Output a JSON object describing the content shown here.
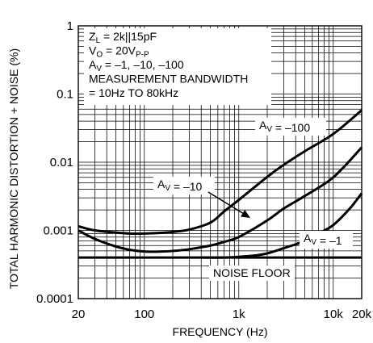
{
  "chart_data": {
    "type": "line",
    "title": "",
    "xlabel": "FREQUENCY (Hz)",
    "ylabel": "TOTAL HARMONIC DISTORTION + NOISE (%)",
    "x_scale": "log",
    "y_scale": "log",
    "xlim": [
      20,
      20000
    ],
    "ylim": [
      0.0001,
      1
    ],
    "grid": true,
    "x_ticks": [
      {
        "value": 20,
        "label": "20"
      },
      {
        "value": 100,
        "label": "100"
      },
      {
        "value": 1000,
        "label": "1k"
      },
      {
        "value": 10000,
        "label": "10k"
      },
      {
        "value": 20000,
        "label": "20k"
      }
    ],
    "y_ticks": [
      {
        "value": 1,
        "label": "1"
      },
      {
        "value": 0.1,
        "label": "0.1"
      },
      {
        "value": 0.01,
        "label": "0.01"
      },
      {
        "value": 0.001,
        "label": "0.001"
      },
      {
        "value": 0.0001,
        "label": "0.0001"
      }
    ],
    "conditions": {
      "lines": [
        {
          "parts": [
            {
              "t": "Z"
            },
            {
              "t": "L",
              "sub": true
            },
            {
              "t": " = 2k||15pF"
            }
          ]
        },
        {
          "parts": [
            {
              "t": "V"
            },
            {
              "t": "O",
              "sub": true
            },
            {
              "t": " = 20V"
            },
            {
              "t": "P-P",
              "sub": true
            }
          ]
        },
        {
          "parts": [
            {
              "t": "A"
            },
            {
              "t": "V",
              "sub": true
            },
            {
              "t": " = –1, –10, –100"
            }
          ]
        },
        {
          "parts": [
            {
              "t": "MEASUREMENT BANDWIDTH"
            }
          ]
        },
        {
          "parts": [
            {
              "t": "= 10Hz TO 80kHz"
            }
          ]
        }
      ]
    },
    "series": [
      {
        "label": {
          "parts": [
            {
              "t": "A"
            },
            {
              "t": "V",
              "sub": true
            },
            {
              "t": " = –100"
            }
          ]
        },
        "x": [
          20,
          30,
          50,
          70,
          100,
          150,
          200,
          300,
          500,
          700,
          1000,
          2000,
          3000,
          5000,
          10000,
          20000
        ],
        "y": [
          0.00115,
          0.001,
          0.00093,
          0.0009,
          0.0009,
          0.00092,
          0.00095,
          0.00103,
          0.0013,
          0.0019,
          0.0028,
          0.0061,
          0.0092,
          0.0145,
          0.026,
          0.058
        ]
      },
      {
        "label": {
          "parts": [
            {
              "t": "A"
            },
            {
              "t": "V",
              "sub": true
            },
            {
              "t": " = –10"
            }
          ]
        },
        "x": [
          20,
          30,
          50,
          70,
          100,
          150,
          200,
          300,
          500,
          700,
          1000,
          2000,
          3000,
          5000,
          10000,
          20000
        ],
        "y": [
          0.001,
          0.00075,
          0.00058,
          0.00052,
          0.00049,
          0.00049,
          0.0005,
          0.00053,
          0.0006,
          0.00068,
          0.0008,
          0.0014,
          0.0021,
          0.0032,
          0.006,
          0.0165
        ]
      },
      {
        "label": {
          "parts": [
            {
              "t": "A"
            },
            {
              "t": "V",
              "sub": true
            },
            {
              "t": " = –1"
            }
          ]
        },
        "x": [
          400,
          700,
          1000,
          1500,
          2000,
          3000,
          5000,
          7000,
          10000,
          15000,
          20000
        ],
        "y": [
          0.0004,
          0.0004,
          0.00041,
          0.00043,
          0.00046,
          0.00055,
          0.0007,
          0.0009,
          0.0012,
          0.0021,
          0.0035
        ]
      }
    ],
    "noise_floor": {
      "label": "NOISE FLOOR",
      "y": 0.0004
    }
  }
}
